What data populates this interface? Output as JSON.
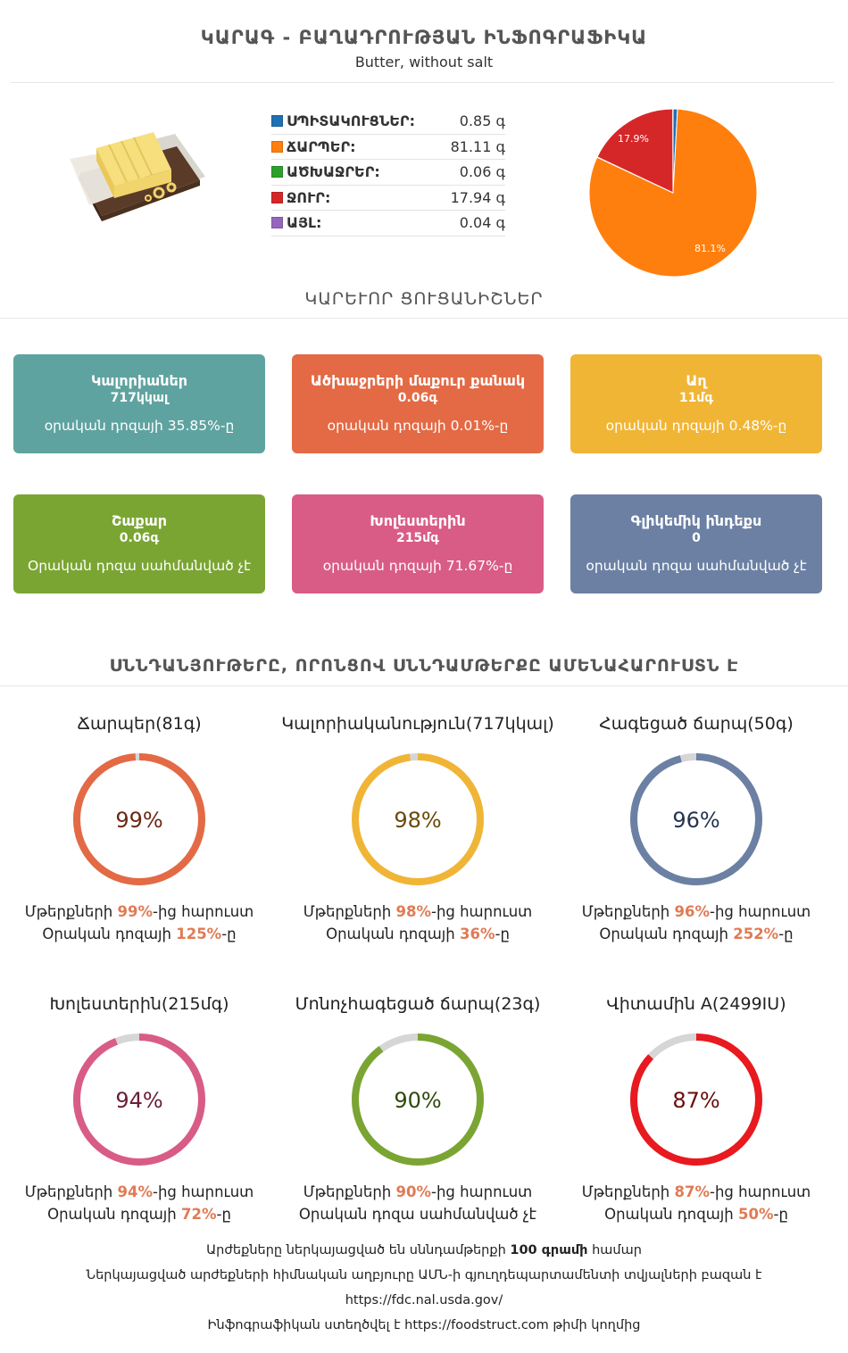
{
  "header": {
    "title": "ԿԱՐԱԳ - ԲԱՂԱԴՐՈՒԹՅԱՆ ԻՆՖՈԳՐԱՖԻԿԱ",
    "subtitle": "Butter, without salt"
  },
  "composition": {
    "items": [
      {
        "label": "ՍՊԻՏԱԿՈՒՑՆԵՐ:",
        "value": "0.85 գ",
        "color": "#1f6fb4",
        "amount": 0.85
      },
      {
        "label": "ՃԱՐՊԵՐ:",
        "value": "81.11 գ",
        "color": "#ff7f0e",
        "amount": 81.11
      },
      {
        "label": "ԱԾԽԱՋՐԵՐ:",
        "value": "0.06 գ",
        "color": "#2ca02c",
        "amount": 0.06
      },
      {
        "label": "ՋՈՒՐ:",
        "value": "17.94 գ",
        "color": "#d62728",
        "amount": 17.94
      },
      {
        "label": "ԱՅԼ:",
        "value": "0.04 գ",
        "color": "#9467bd",
        "amount": 0.04
      }
    ],
    "pie_labels": {
      "water": "17.9%",
      "fat": "81.1%"
    }
  },
  "key_section": {
    "title": "ԿԱՐԵՒՈՐ ՑՈՒՑԱՆԻՇՆԵՐ"
  },
  "cards": [
    {
      "title": "Կալորիաներ",
      "value": "717կկալ",
      "note": "օրական դոզայի 35.85%-ը",
      "color": "#5fa3a0"
    },
    {
      "title": "Ածխաջրերի մաքուր քանակ",
      "value": "0.06գ",
      "note": "օրական դոզայի 0.01%-ը",
      "color": "#e36a45"
    },
    {
      "title": "Աղ",
      "value": "11մգ",
      "note": "օրական դոզայի 0.48%-ը",
      "color": "#f1b535"
    },
    {
      "title": "Շաքար",
      "value": "0.06գ",
      "note": "Օրական դոզա սահմանված չէ",
      "color": "#7aa532"
    },
    {
      "title": "Խոլեստերին",
      "value": "215մգ",
      "note": "օրական դոզայի 71.67%-ը",
      "color": "#d95c86"
    },
    {
      "title": "Գլիկեմիկ ինդեքս",
      "value": "0",
      "note": "օրական դոզա սահմանված չէ",
      "color": "#6b80a3"
    }
  ],
  "rich_section": {
    "title": "ՍՆՆԴԱՆՅՈՒԹԵՐԸ, ՈՐՈՆՑՈՎ ՍՆՆԴԱՄԹԵՐՔԸ ԱՄԵՆԱՀԱՐՈՒՍՏՆ Է"
  },
  "rings": [
    {
      "title": "Ճարպեր(81գ)",
      "percent_text": "99%",
      "pct": 99,
      "color": "#e36a45",
      "text_color": "#6b2a14",
      "line1_pre": "Մթերքների ",
      "line1_hl": "99%",
      "line1_post": "-ից հարուստ",
      "line2_pre": "Օրական դոզայի ",
      "line2_hl": "125%",
      "line2_post": "-ը"
    },
    {
      "title": "Կալորիականություն(717կկալ)",
      "percent_text": "98%",
      "pct": 98,
      "color": "#f1b535",
      "text_color": "#6a4a08",
      "line1_pre": "Մթերքների ",
      "line1_hl": "98%",
      "line1_post": "-ից հարուստ",
      "line2_pre": "Օրական դոզայի ",
      "line2_hl": "36%",
      "line2_post": "-ը"
    },
    {
      "title": "Հագեցած ճարպ(50գ)",
      "percent_text": "96%",
      "pct": 96,
      "color": "#6b80a3",
      "text_color": "#243452",
      "line1_pre": "Մթերքների ",
      "line1_hl": "96%",
      "line1_post": "-ից հարուստ",
      "line2_pre": "Օրական դոզայի ",
      "line2_hl": "252%",
      "line2_post": "-ը"
    },
    {
      "title": "Խոլեստերին(215մգ)",
      "percent_text": "94%",
      "pct": 94,
      "color": "#d95c86",
      "text_color": "#6a1d3a",
      "line1_pre": "Մթերքների ",
      "line1_hl": "94%",
      "line1_post": "-ից հարուստ",
      "line2_pre": "Օրական դոզայի ",
      "line2_hl": "72%",
      "line2_post": "-ը"
    },
    {
      "title": "Մոնոչհագեցած ճարպ(23գ)",
      "percent_text": "90%",
      "pct": 90,
      "color": "#7aa532",
      "text_color": "#2f4a0a",
      "line1_pre": "Մթերքների ",
      "line1_hl": "90%",
      "line1_post": "-ից հարուստ",
      "line2_pre": "Օրական դոզա սահմանված չէ",
      "line2_hl": "",
      "line2_post": ""
    },
    {
      "title": "Վիտամին A(2499IU)",
      "percent_text": "87%",
      "pct": 87,
      "color": "#e8191f",
      "text_color": "#6a0c0e",
      "line1_pre": "Մթերքների ",
      "line1_hl": "87%",
      "line1_post": "-ից հարուստ",
      "line2_pre": "Օրական դոզայի ",
      "line2_hl": "50%",
      "line2_post": "-ը"
    }
  ],
  "footer": {
    "line1_pre": "Արժեքները ներկայացված են սննդամթերքի ",
    "line1_bold": "100 գրամի",
    "line1_post": " համար",
    "line2": "Ներկայացված արժեքների հիմնական աղբյուրը ԱՄՆ-ի գյուղդեպարտամենտի տվյալների բազան է",
    "line3": "https://fdc.nal.usda.gov/",
    "line4": "Ինֆոգրաֆիկան ստեղծվել է https://foodstruct.com թիմի կողմից"
  }
}
